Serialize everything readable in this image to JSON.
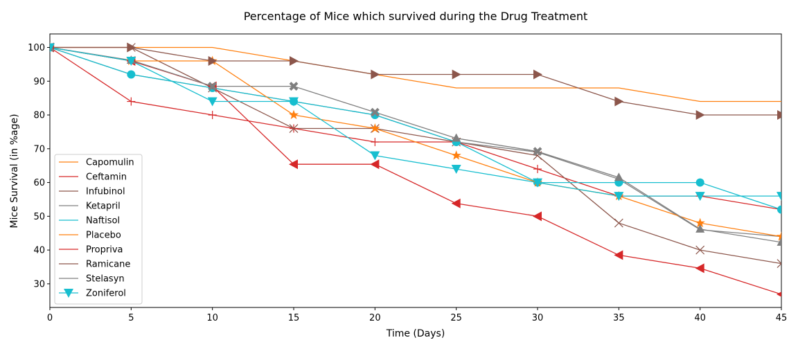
{
  "chart_data": {
    "type": "line",
    "title": "Percentage of Mice which survived during the Drug Treatment",
    "xlabel": "Time (Days)",
    "ylabel": "Mice Survival (in %age)",
    "xlim": [
      0,
      45
    ],
    "ylim": [
      23,
      104
    ],
    "xticks": [
      0,
      5,
      10,
      15,
      20,
      25,
      30,
      35,
      40,
      45
    ],
    "yticks": [
      30,
      40,
      50,
      60,
      70,
      80,
      90,
      100
    ],
    "grid": false,
    "legend_position": "lower-left",
    "x": [
      0,
      5,
      10,
      15,
      20,
      25,
      30,
      35,
      40,
      45
    ],
    "series": [
      {
        "name": "Capomulin",
        "color": "#ff7f0e",
        "marker": "none",
        "values": [
          100,
          100,
          100,
          96,
          92,
          88,
          88,
          88,
          84,
          84
        ]
      },
      {
        "name": "Ceftamin",
        "color": "#d62728",
        "marker": "plus",
        "values": [
          100,
          84,
          80,
          76,
          72,
          72,
          64,
          56,
          56,
          52
        ]
      },
      {
        "name": "Infubinol",
        "color": "#8c564b",
        "marker": "x",
        "values": [
          100,
          100,
          88,
          76,
          76,
          72,
          68,
          48,
          40,
          36
        ]
      },
      {
        "name": "Ketapril",
        "color": "#7f7f7f",
        "marker": "none",
        "values": [
          100,
          92,
          88,
          84,
          80,
          72,
          69,
          61,
          46,
          44
        ]
      },
      {
        "name": "Naftisol",
        "color": "#17becf",
        "marker": "circle",
        "values": [
          100,
          92,
          88,
          84,
          80,
          72,
          60,
          60,
          60,
          52
        ]
      },
      {
        "name": "Placebo",
        "color": "#ff7f0e",
        "marker": "star",
        "values": [
          100,
          96,
          96,
          80,
          76,
          68,
          60,
          56,
          48,
          44
        ]
      },
      {
        "name": "Propriva",
        "color": "#d62728",
        "marker": "triangle-left",
        "values": [
          100,
          96,
          88.5,
          65.4,
          65.4,
          53.8,
          50,
          38.5,
          34.6,
          26.9
        ]
      },
      {
        "name": "Ramicane",
        "color": "#8c564b",
        "marker": "triangle-right",
        "values": [
          100,
          100,
          96,
          96,
          92,
          92,
          92,
          84,
          80,
          80
        ]
      },
      {
        "name": "Stelasyn",
        "color": "#7f7f7f",
        "marker": "mixed",
        "values": [
          100,
          96.2,
          88.5,
          88.5,
          80.8,
          73.1,
          69.2,
          61.5,
          46.2,
          42.3
        ]
      },
      {
        "name": "Zoniferol",
        "color": "#17becf",
        "marker": "triangle-down",
        "values": [
          100,
          96,
          84,
          84,
          68,
          64,
          60,
          56,
          56,
          56
        ]
      }
    ]
  }
}
